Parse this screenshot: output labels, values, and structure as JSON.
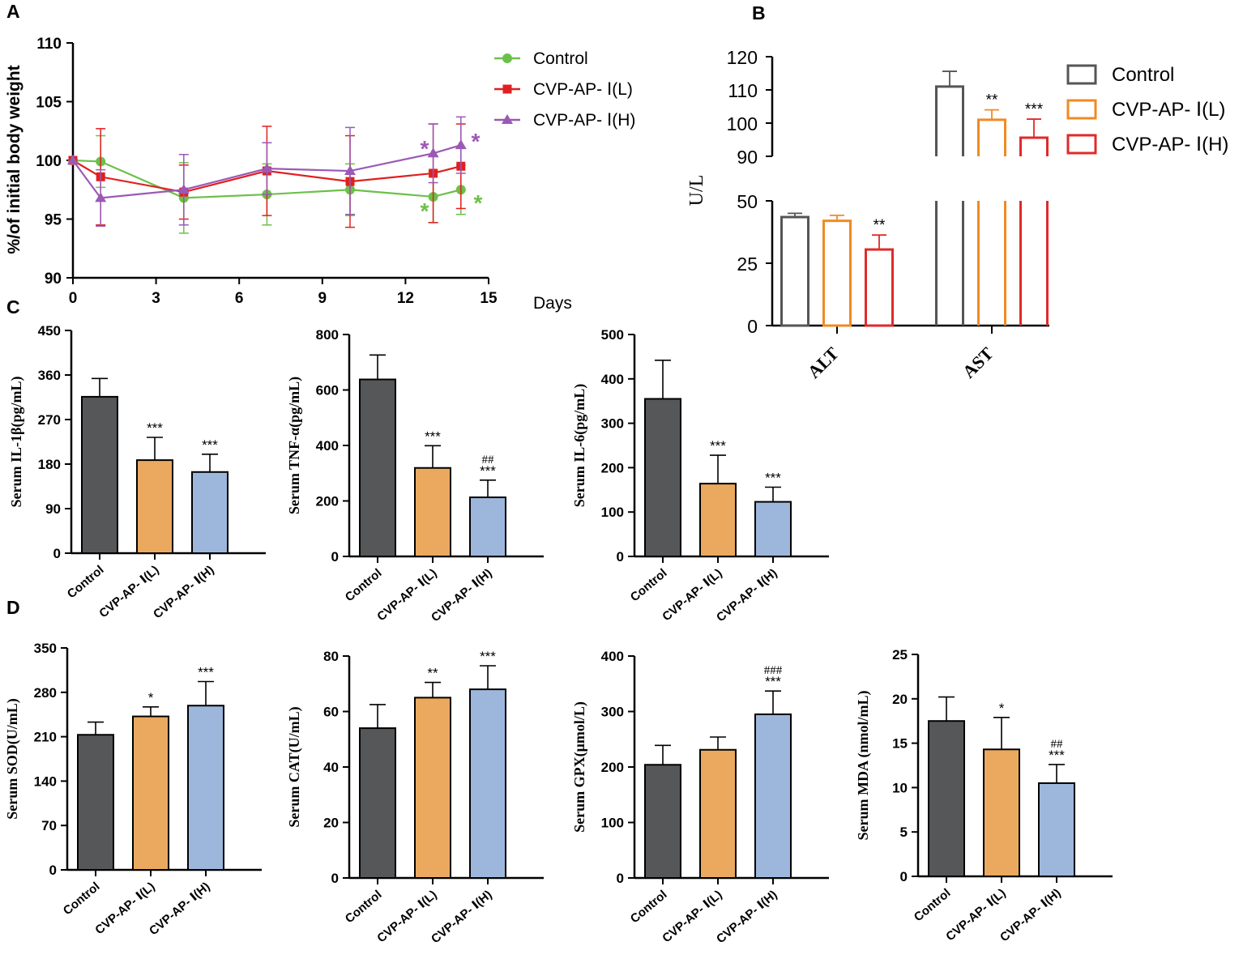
{
  "panel_labels": [
    "A",
    "B",
    "C",
    "D"
  ],
  "colors": {
    "control_line": "#6cc04a",
    "low_line": "#e02020",
    "high_line": "#9b59b6",
    "control_bar": "#555759",
    "low_bar": "#eaa95f",
    "high_bar": "#9db7dc",
    "b_control": "#555555",
    "b_low": "#f08a24",
    "b_high": "#e02a2a"
  },
  "chart_data": [
    {
      "id": "A",
      "type": "line",
      "title": "",
      "xlabel": "Days",
      "ylabel": "%/of initial body weight",
      "xlim": [
        0,
        15
      ],
      "ylim": [
        90,
        110
      ],
      "xticks": [
        "0",
        "3",
        "6",
        "9",
        "12",
        "15"
      ],
      "yticks": [
        "90",
        "95",
        "100",
        "105",
        "110"
      ],
      "legend": [
        "Control",
        "CVP-AP- Ⅰ(L)",
        "CVP-AP- Ⅰ(H)"
      ],
      "series": [
        {
          "name": "Control",
          "x": [
            0,
            1,
            4,
            7,
            10,
            13,
            14
          ],
          "y": [
            100,
            99.9,
            96.8,
            97.1,
            97.5,
            96.9,
            97.5
          ],
          "err": [
            0,
            2.2,
            3.0,
            2.6,
            2.2,
            2.2,
            2.1
          ]
        },
        {
          "name": "CVP-AP- Ⅰ(L)",
          "x": [
            0,
            1,
            4,
            7,
            10,
            13,
            14
          ],
          "y": [
            100,
            98.6,
            97.3,
            99.1,
            98.2,
            98.9,
            99.5
          ],
          "err": [
            0,
            4.1,
            2.3,
            3.8,
            3.9,
            4.2,
            3.6
          ]
        },
        {
          "name": "CVP-AP- Ⅰ(H)",
          "x": [
            0,
            1,
            4,
            7,
            10,
            13,
            14
          ],
          "y": [
            100,
            96.8,
            97.5,
            99.3,
            99.1,
            100.6,
            101.3
          ],
          "err": [
            0,
            2.4,
            3.0,
            2.2,
            3.7,
            2.5,
            2.4
          ]
        }
      ],
      "annotations": [
        "*",
        "*",
        "*",
        "*"
      ]
    },
    {
      "id": "B",
      "type": "bar",
      "title": "",
      "xlabel": "",
      "ylabel": "U/L",
      "categories": [
        "ALT",
        "AST"
      ],
      "ylim_low": [
        0,
        50
      ],
      "ylim_high": [
        90,
        120
      ],
      "yticks": [
        "0",
        "25",
        "50",
        "90",
        "100",
        "110",
        "120"
      ],
      "legend": [
        "Control",
        "CVP-AP- Ⅰ(L)",
        "CVP-AP- Ⅰ(H)"
      ],
      "series": [
        {
          "name": "Control",
          "values": [
            43.5,
            111
          ],
          "err": [
            1.5,
            4.6
          ],
          "sig": [
            "",
            ""
          ]
        },
        {
          "name": "CVP-AP- Ⅰ(L)",
          "values": [
            42,
            101
          ],
          "err": [
            2.2,
            3.0
          ],
          "sig": [
            "",
            "**"
          ]
        },
        {
          "name": "CVP-AP- Ⅰ(H)",
          "values": [
            30.5,
            95.6
          ],
          "err": [
            5.8,
            5.6
          ],
          "sig": [
            "**",
            "***"
          ]
        }
      ]
    },
    {
      "id": "C1",
      "type": "bar",
      "title": "",
      "ylabel": "Serum IL-1β(pg/mL)",
      "categories": [
        "Control",
        "CVP-AP- Ⅰ(L)",
        "CVP-AP- Ⅰ(H)"
      ],
      "values": [
        316,
        188,
        164
      ],
      "err": [
        37,
        46,
        36
      ],
      "sig": [
        "",
        "***",
        "***"
      ],
      "ylim": [
        0,
        450
      ],
      "yticks": [
        "0",
        "90",
        "180",
        "270",
        "360",
        "450"
      ]
    },
    {
      "id": "C2",
      "type": "bar",
      "title": "",
      "ylabel": "Serum TNF-α(pg/mL)",
      "categories": [
        "Control",
        "CVP-AP- Ⅰ(L)",
        "CVP-AP- Ⅰ(H)"
      ],
      "values": [
        638,
        319,
        213
      ],
      "err": [
        88,
        80,
        62
      ],
      "sig": [
        "",
        "***",
        "***"
      ],
      "sig2": [
        "",
        "",
        "##"
      ],
      "ylim": [
        0,
        800
      ],
      "yticks": [
        "0",
        "200",
        "400",
        "600",
        "800"
      ]
    },
    {
      "id": "C3",
      "type": "bar",
      "title": "",
      "ylabel": "Serum IL-6(pg/mL)",
      "categories": [
        "Control",
        "CVP-AP- Ⅰ(L)",
        "CVP-AP- Ⅰ(H)"
      ],
      "values": [
        355,
        164,
        123
      ],
      "err": [
        87,
        64,
        33
      ],
      "sig": [
        "",
        "***",
        "***"
      ],
      "ylim": [
        0,
        500
      ],
      "yticks": [
        "0",
        "100",
        "200",
        "300",
        "400",
        "500"
      ]
    },
    {
      "id": "D1",
      "type": "bar",
      "title": "",
      "ylabel": "Serum SOD(U/mL)",
      "categories": [
        "Control",
        "CVP-AP- Ⅰ(L)",
        "CVP-AP- Ⅰ(H)"
      ],
      "values": [
        213,
        242,
        259
      ],
      "err": [
        20,
        15,
        38
      ],
      "sig": [
        "",
        "*",
        "***"
      ],
      "ylim": [
        0,
        350
      ],
      "yticks": [
        "0",
        "70",
        "140",
        "210",
        "280",
        "350"
      ]
    },
    {
      "id": "D2",
      "type": "bar",
      "title": "",
      "ylabel": "Serum CAT(U/mL)",
      "categories": [
        "Control",
        "CVP-AP- Ⅰ(L)",
        "CVP-AP- Ⅰ(H)"
      ],
      "values": [
        54,
        65,
        68
      ],
      "err": [
        8.5,
        5.5,
        8.5
      ],
      "sig": [
        "",
        "**",
        "***"
      ],
      "ylim": [
        0,
        80
      ],
      "yticks": [
        "0",
        "20",
        "40",
        "60",
        "80"
      ]
    },
    {
      "id": "D3",
      "type": "bar",
      "title": "",
      "ylabel": "Serum GPX(μmol/L)",
      "categories": [
        "Control",
        "CVP-AP- Ⅰ(L)",
        "CVP-AP- Ⅰ(H)"
      ],
      "values": [
        204,
        231,
        295
      ],
      "err": [
        35,
        23,
        42
      ],
      "sig": [
        "",
        "",
        "***"
      ],
      "sig2": [
        "",
        "",
        "###"
      ],
      "ylim": [
        0,
        400
      ],
      "yticks": [
        "0",
        "100",
        "200",
        "300",
        "400"
      ]
    },
    {
      "id": "D4",
      "type": "bar",
      "title": "",
      "ylabel": "Serum MDA (nmol/mL)",
      "categories": [
        "Control",
        "CVP-AP- Ⅰ(L)",
        "CVP-AP- Ⅰ(H)"
      ],
      "values": [
        17.5,
        14.3,
        10.5
      ],
      "err": [
        2.7,
        3.6,
        2.1
      ],
      "sig": [
        "",
        "*",
        "***"
      ],
      "sig2": [
        "",
        "",
        "##"
      ],
      "ylim": [
        0,
        25
      ],
      "yticks": [
        "0",
        "5",
        "10",
        "15",
        "20",
        "25"
      ]
    }
  ]
}
